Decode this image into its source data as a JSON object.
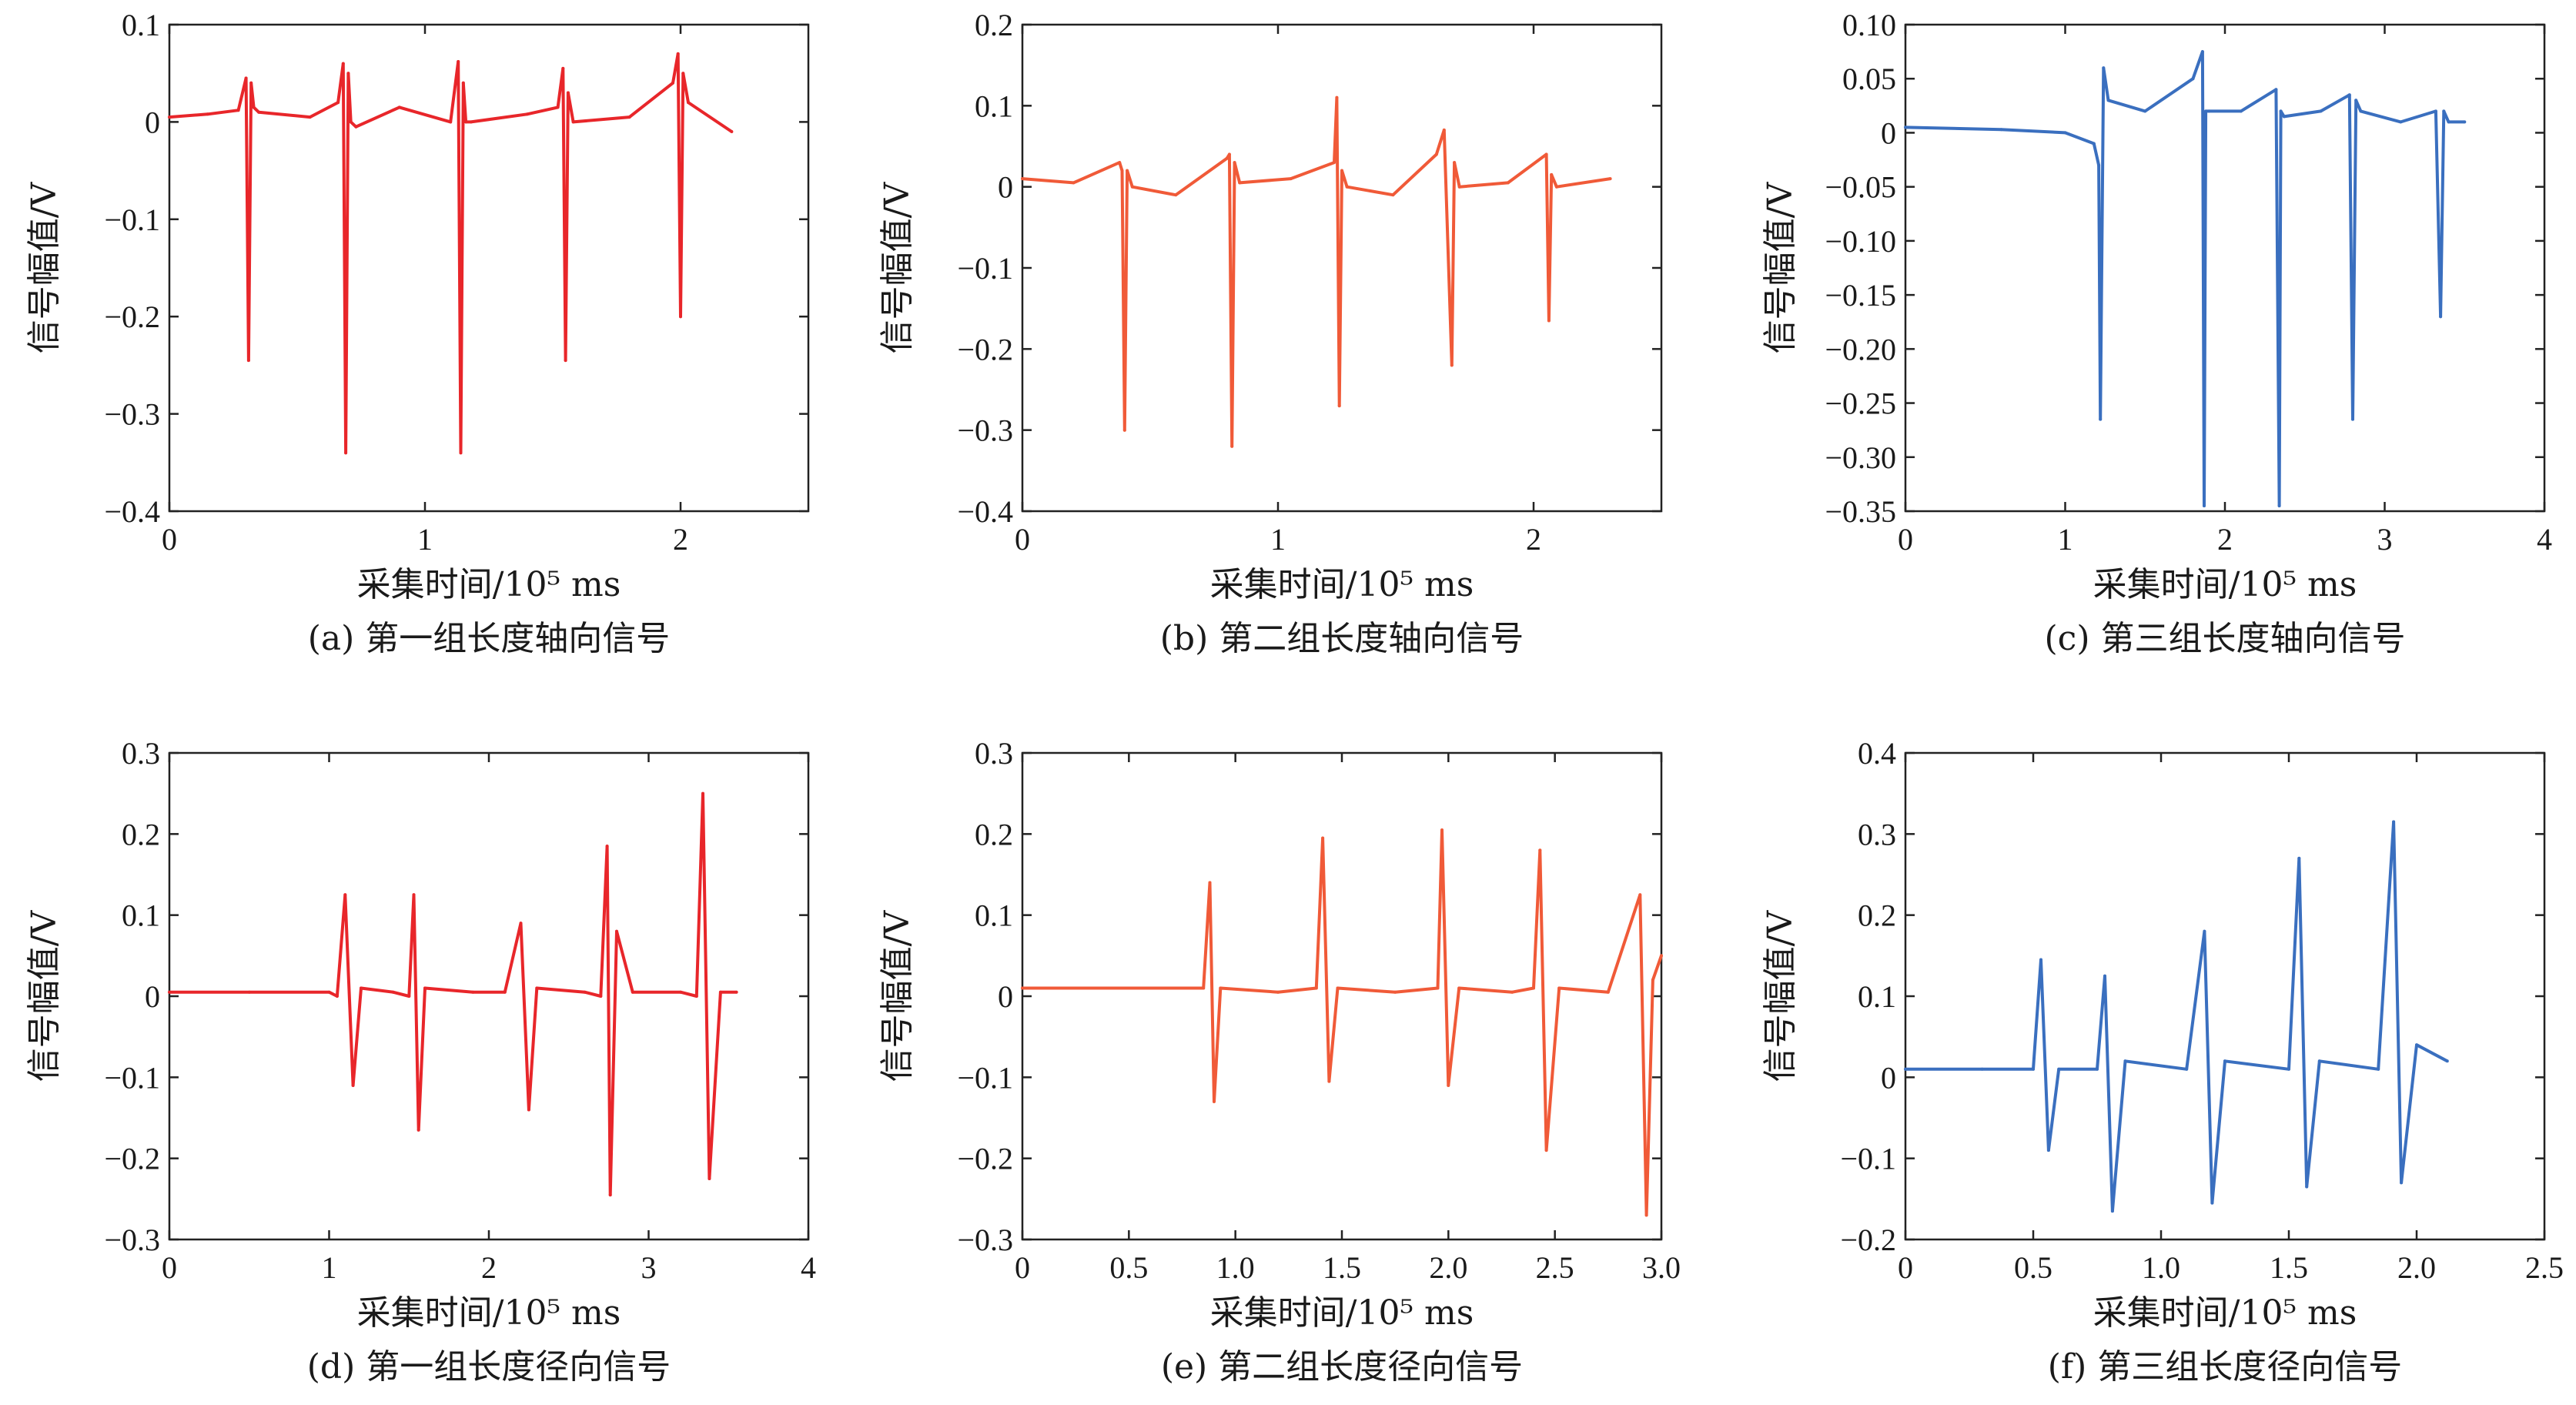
{
  "chart_data": [
    {
      "id": "a",
      "type": "line",
      "caption": "(a) 第一组长度轴向信号",
      "xlabel": "采集时间/10⁵ ms",
      "ylabel": "信号幅值/V",
      "xlim": [
        0,
        2.5
      ],
      "ylim": [
        -0.4,
        0.1
      ],
      "xticks": [
        "0",
        "1",
        "2"
      ],
      "xtick_values": [
        0,
        1,
        2
      ],
      "yticks": [
        "−0.4",
        "−0.3",
        "−0.2",
        "−0.1",
        "0",
        "0.1"
      ],
      "ytick_values": [
        -0.4,
        -0.3,
        -0.2,
        -0.1,
        0,
        0.1
      ],
      "color": "#e8262a",
      "x": [
        0,
        0.15,
        0.27,
        0.3,
        0.31,
        0.32,
        0.33,
        0.35,
        0.55,
        0.66,
        0.68,
        0.69,
        0.7,
        0.71,
        0.73,
        0.9,
        1.1,
        1.13,
        1.14,
        1.15,
        1.16,
        1.18,
        1.4,
        1.52,
        1.54,
        1.55,
        1.56,
        1.58,
        1.8,
        1.97,
        1.99,
        2.0,
        2.01,
        2.03,
        2.2
      ],
      "y": [
        0.005,
        0.008,
        0.012,
        0.045,
        -0.245,
        0.04,
        0.015,
        0.01,
        0.005,
        0.02,
        0.06,
        -0.34,
        0.05,
        0.0,
        -0.005,
        0.015,
        0.0,
        0.062,
        -0.34,
        0.04,
        0.0,
        0.0,
        0.008,
        0.015,
        0.055,
        -0.245,
        0.03,
        0.0,
        0.005,
        0.04,
        0.07,
        -0.2,
        0.05,
        0.02,
        -0.01
      ]
    },
    {
      "id": "b",
      "type": "line",
      "caption": "(b) 第二组长度轴向信号",
      "xlabel": "采集时间/10⁵ ms",
      "ylabel": "信号幅值/V",
      "xlim": [
        0,
        2.5
      ],
      "ylim": [
        -0.4,
        0.2
      ],
      "xticks": [
        "0",
        "1",
        "2"
      ],
      "xtick_values": [
        0,
        1,
        2
      ],
      "yticks": [
        "−0.4",
        "−0.3",
        "−0.2",
        "−0.1",
        "0",
        "0.1",
        "0.2"
      ],
      "ytick_values": [
        -0.4,
        -0.3,
        -0.2,
        -0.1,
        0,
        0.1,
        0.2
      ],
      "color": "#f05a38",
      "x": [
        0,
        0.2,
        0.38,
        0.39,
        0.4,
        0.41,
        0.43,
        0.6,
        0.8,
        0.81,
        0.82,
        0.83,
        0.85,
        1.05,
        1.22,
        1.23,
        1.24,
        1.25,
        1.27,
        1.45,
        1.62,
        1.65,
        1.68,
        1.69,
        1.71,
        1.9,
        2.05,
        2.06,
        2.07,
        2.09,
        2.3
      ],
      "y": [
        0.01,
        0.005,
        0.03,
        0.02,
        -0.3,
        0.02,
        0.0,
        -0.01,
        0.035,
        0.04,
        -0.32,
        0.03,
        0.005,
        0.01,
        0.03,
        0.11,
        -0.27,
        0.02,
        0.0,
        -0.01,
        0.04,
        0.07,
        -0.22,
        0.03,
        0.0,
        0.005,
        0.04,
        -0.165,
        0.015,
        0.0,
        0.01
      ]
    },
    {
      "id": "c",
      "type": "line",
      "caption": "(c) 第三组长度轴向信号",
      "xlabel": "采集时间/10⁵ ms",
      "ylabel": "信号幅值/V",
      "xlim": [
        0,
        4
      ],
      "ylim": [
        -0.35,
        0.1
      ],
      "xticks": [
        "0",
        "1",
        "2",
        "3",
        "4"
      ],
      "xtick_values": [
        0,
        1,
        2,
        3,
        4
      ],
      "yticks": [
        "−0.35",
        "−0.30",
        "−0.25",
        "−0.20",
        "−0.15",
        "−0.10",
        "−0.05",
        "0",
        "0.05",
        "0.10"
      ],
      "ytick_values": [
        -0.35,
        -0.3,
        -0.25,
        -0.2,
        -0.15,
        -0.1,
        -0.05,
        0,
        0.05,
        0.1
      ],
      "color": "#3a6fbf",
      "x": [
        0,
        0.6,
        1.0,
        1.18,
        1.21,
        1.22,
        1.24,
        1.27,
        1.5,
        1.8,
        1.86,
        1.87,
        1.88,
        1.9,
        2.1,
        2.32,
        2.34,
        2.35,
        2.37,
        2.6,
        2.78,
        2.8,
        2.82,
        2.85,
        3.1,
        3.32,
        3.35,
        3.37,
        3.4,
        3.5
      ],
      "y": [
        0.005,
        0.003,
        0.0,
        -0.01,
        -0.03,
        -0.265,
        0.06,
        0.03,
        0.02,
        0.05,
        0.075,
        -0.345,
        0.02,
        0.02,
        0.02,
        0.04,
        -0.345,
        0.02,
        0.015,
        0.02,
        0.035,
        -0.265,
        0.03,
        0.02,
        0.01,
        0.02,
        -0.17,
        0.02,
        0.01,
        0.01
      ]
    },
    {
      "id": "d",
      "type": "line",
      "caption": "(d) 第一组长度径向信号",
      "xlabel": "采集时间/10⁵ ms",
      "ylabel": "信号幅值/V",
      "xlim": [
        0,
        4
      ],
      "ylim": [
        -0.3,
        0.3
      ],
      "xticks": [
        "0",
        "1",
        "2",
        "3",
        "4"
      ],
      "xtick_values": [
        0,
        1,
        2,
        3,
        4
      ],
      "yticks": [
        "−0.3",
        "−0.2",
        "−0.1",
        "0",
        "0.1",
        "0.2",
        "0.3"
      ],
      "ytick_values": [
        -0.3,
        -0.2,
        -0.1,
        0,
        0.1,
        0.2,
        0.3
      ],
      "color": "#e8262a",
      "x": [
        0,
        0.5,
        1.0,
        1.05,
        1.1,
        1.15,
        1.2,
        1.4,
        1.5,
        1.53,
        1.56,
        1.6,
        1.9,
        2.1,
        2.2,
        2.25,
        2.3,
        2.6,
        2.7,
        2.74,
        2.76,
        2.8,
        2.9,
        3.2,
        3.3,
        3.34,
        3.38,
        3.45,
        3.55
      ],
      "y": [
        0.005,
        0.005,
        0.005,
        0.0,
        0.125,
        -0.11,
        0.01,
        0.005,
        0.0,
        0.125,
        -0.165,
        0.01,
        0.005,
        0.005,
        0.09,
        -0.14,
        0.01,
        0.005,
        0.0,
        0.185,
        -0.245,
        0.08,
        0.005,
        0.005,
        0.0,
        0.25,
        -0.225,
        0.005,
        0.005
      ]
    },
    {
      "id": "e",
      "type": "line",
      "caption": "(e) 第二组长度径向信号",
      "xlabel": "采集时间/10⁵ ms",
      "ylabel": "信号幅值/V",
      "xlim": [
        0,
        3.0
      ],
      "ylim": [
        -0.3,
        0.3
      ],
      "xticks": [
        "0",
        "0.5",
        "1.0",
        "1.5",
        "2.0",
        "2.5",
        "3.0"
      ],
      "xtick_values": [
        0,
        0.5,
        1.0,
        1.5,
        2.0,
        2.5,
        3.0
      ],
      "yticks": [
        "−0.3",
        "−0.2",
        "−0.1",
        "0",
        "0.1",
        "0.2",
        "0.3"
      ],
      "ytick_values": [
        -0.3,
        -0.2,
        -0.1,
        0,
        0.1,
        0.2,
        0.3
      ],
      "color": "#f05a38",
      "x": [
        0,
        0.4,
        0.85,
        0.88,
        0.9,
        0.93,
        1.2,
        1.38,
        1.41,
        1.44,
        1.48,
        1.75,
        1.95,
        1.97,
        2.0,
        2.05,
        2.3,
        2.4,
        2.43,
        2.46,
        2.52,
        2.75,
        2.9,
        2.93,
        2.96,
        3.0
      ],
      "y": [
        0.01,
        0.01,
        0.01,
        0.14,
        -0.13,
        0.01,
        0.005,
        0.01,
        0.195,
        -0.105,
        0.01,
        0.005,
        0.01,
        0.205,
        -0.11,
        0.01,
        0.005,
        0.01,
        0.18,
        -0.19,
        0.01,
        0.005,
        0.125,
        -0.27,
        0.02,
        0.05
      ]
    },
    {
      "id": "f",
      "type": "line",
      "caption": "(f) 第三组长度径向信号",
      "xlabel": "采集时间/10⁵ ms",
      "ylabel": "信号幅值/V",
      "xlim": [
        0,
        2.5
      ],
      "ylim": [
        -0.2,
        0.4
      ],
      "xticks": [
        "0",
        "0.5",
        "1.0",
        "1.5",
        "2.0",
        "2.5"
      ],
      "xtick_values": [
        0,
        0.5,
        1.0,
        1.5,
        2.0,
        2.5
      ],
      "yticks": [
        "−0.2",
        "−0.1",
        "0",
        "0.1",
        "0.2",
        "0.3",
        "0.4"
      ],
      "ytick_values": [
        -0.2,
        -0.1,
        0,
        0.1,
        0.2,
        0.3,
        0.4
      ],
      "color": "#3a6fbf",
      "x": [
        0,
        0.3,
        0.5,
        0.53,
        0.56,
        0.6,
        0.75,
        0.78,
        0.81,
        0.86,
        1.1,
        1.17,
        1.2,
        1.25,
        1.5,
        1.54,
        1.57,
        1.62,
        1.85,
        1.91,
        1.94,
        2.0,
        2.12
      ],
      "y": [
        0.01,
        0.01,
        0.01,
        0.145,
        -0.09,
        0.01,
        0.01,
        0.125,
        -0.165,
        0.02,
        0.01,
        0.18,
        -0.155,
        0.02,
        0.01,
        0.27,
        -0.135,
        0.02,
        0.01,
        0.315,
        -0.13,
        0.04,
        0.02
      ]
    }
  ]
}
